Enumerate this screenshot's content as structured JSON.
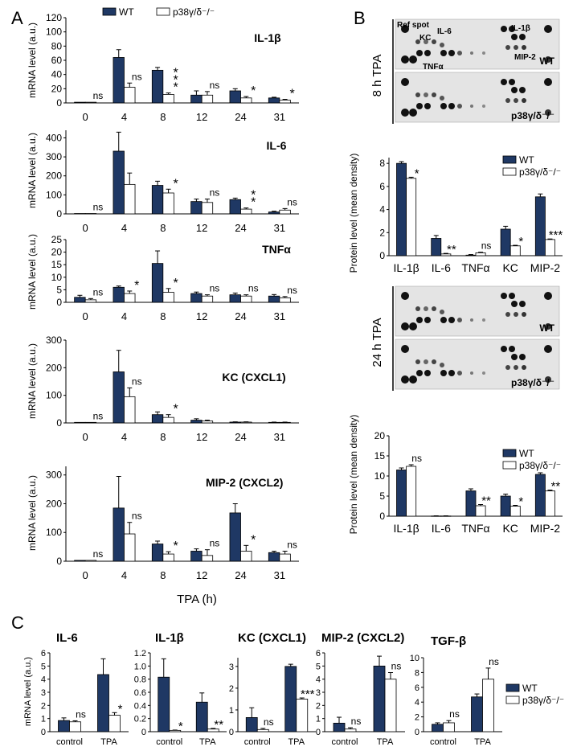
{
  "panels": {
    "A": "A",
    "B": "B",
    "C": "C"
  },
  "legend": {
    "wt": "WT",
    "ko": "p38γ/δ⁻/⁻"
  },
  "ylabel_mrna": "mRNA level (a.u.)",
  "ylabel_protein": "Protein level (mean density)",
  "xlabel_A": "TPA (h)",
  "blots": [
    {
      "time_label": "8 h TPA",
      "wt_label": "WT",
      "ko_label": "p38γ/δ⁻/⁻",
      "ref_spot": "Ref spot",
      "spot_labels": [
        "KC",
        "IL-6",
        "TNFα",
        "IL-1β",
        "MIP-2"
      ]
    },
    {
      "time_label": "24 h TPA",
      "wt_label": "WT",
      "ko_label": "p38γ/δ⁻/⁻"
    }
  ],
  "chart_data": [
    {
      "type": "bar",
      "panel": "A",
      "title": "IL-1β",
      "categories": [
        "0",
        "4",
        "8",
        "12",
        "24",
        "31"
      ],
      "yticks": [
        "0",
        "20",
        "40",
        "60",
        "80",
        "100",
        "120"
      ],
      "ylim": [
        0,
        120
      ],
      "series": [
        {
          "name": "WT",
          "values": [
            1,
            64,
            46,
            11,
            17,
            7
          ],
          "errors": [
            0,
            11,
            4,
            6,
            3,
            1
          ]
        },
        {
          "name": "p38γ/δ-/-",
          "values": [
            1,
            22,
            12,
            11,
            7,
            4
          ],
          "errors": [
            0,
            6,
            2,
            5,
            2,
            1
          ]
        }
      ],
      "annotations": [
        "ns",
        "ns",
        "***",
        "ns",
        "*",
        "*"
      ]
    },
    {
      "type": "bar",
      "panel": "A",
      "title": "IL-6",
      "categories": [
        "0",
        "4",
        "8",
        "12",
        "24",
        "31"
      ],
      "yticks": [
        "0",
        "100",
        "200",
        "300",
        "400"
      ],
      "ylim": [
        0,
        440
      ],
      "series": [
        {
          "name": "WT",
          "values": [
            2,
            330,
            150,
            65,
            75,
            10
          ],
          "errors": [
            0,
            100,
            22,
            13,
            8,
            4
          ]
        },
        {
          "name": "p38γ/δ-/-",
          "values": [
            2,
            155,
            110,
            60,
            25,
            20
          ],
          "errors": [
            0,
            60,
            20,
            18,
            6,
            8
          ]
        }
      ],
      "annotations": [
        "ns",
        "",
        "*",
        "ns",
        "**",
        "ns"
      ]
    },
    {
      "type": "bar",
      "panel": "A",
      "title": "TNFα",
      "categories": [
        "0",
        "4",
        "8",
        "12",
        "24",
        "31"
      ],
      "yticks": [
        "0",
        "5",
        "10",
        "15",
        "20",
        "25"
      ],
      "ylim": [
        0,
        25
      ],
      "series": [
        {
          "name": "WT",
          "values": [
            2,
            6,
            15.5,
            3.5,
            3,
            2.5
          ],
          "errors": [
            0.8,
            0.5,
            5,
            0.6,
            0.7,
            0.6
          ]
        },
        {
          "name": "p38γ/δ-/-",
          "values": [
            1,
            3.5,
            4,
            2.5,
            2.5,
            1.8
          ],
          "errors": [
            0.5,
            1,
            1.5,
            0.5,
            0.5,
            0.5
          ]
        }
      ],
      "annotations": [
        "ns",
        "*",
        "*",
        "ns",
        "ns",
        "ns"
      ]
    },
    {
      "type": "bar",
      "panel": "A",
      "title": "KC (CXCL1)",
      "categories": [
        "0",
        "4",
        "8",
        "12",
        "24",
        "31"
      ],
      "yticks": [
        "0",
        "100",
        "200",
        "300"
      ],
      "ylim": [
        0,
        300
      ],
      "series": [
        {
          "name": "WT",
          "values": [
            2,
            185,
            30,
            10,
            3,
            2
          ],
          "errors": [
            0,
            78,
            10,
            5,
            1,
            1
          ]
        },
        {
          "name": "p38γ/δ-/-",
          "values": [
            2,
            95,
            20,
            7,
            3,
            2
          ],
          "errors": [
            0,
            32,
            10,
            3,
            1,
            1
          ]
        }
      ],
      "annotations": [
        "ns",
        "ns",
        "*",
        "",
        "",
        ""
      ]
    },
    {
      "type": "bar",
      "panel": "A",
      "title": "MIP-2 (CXCL2)",
      "categories": [
        "0",
        "4",
        "8",
        "12",
        "24",
        "31"
      ],
      "yticks": [
        "0",
        "100",
        "200",
        "300"
      ],
      "ylim": [
        0,
        330
      ],
      "series": [
        {
          "name": "WT",
          "values": [
            3,
            185,
            60,
            35,
            168,
            30
          ],
          "errors": [
            0,
            110,
            10,
            8,
            32,
            5
          ]
        },
        {
          "name": "p38γ/δ-/-",
          "values": [
            3,
            95,
            25,
            20,
            35,
            25
          ],
          "errors": [
            0,
            40,
            8,
            20,
            20,
            10
          ]
        }
      ],
      "annotations": [
        "ns",
        "ns",
        "*",
        "ns",
        "*",
        "ns"
      ]
    },
    {
      "type": "bar",
      "panel": "B",
      "title": "8 h TPA protein",
      "categories": [
        "IL-1β",
        "IL-6",
        "TNFα",
        "KC",
        "MIP-2"
      ],
      "yticks": [
        "0",
        "2",
        "4",
        "6",
        "8"
      ],
      "ylim": [
        0,
        8.5
      ],
      "series": [
        {
          "name": "WT",
          "values": [
            8.0,
            1.5,
            0.05,
            2.3,
            5.1
          ],
          "errors": [
            0.15,
            0.25,
            0.05,
            0.25,
            0.25
          ]
        },
        {
          "name": "p38γ/δ-/-",
          "values": [
            6.7,
            0.15,
            0.25,
            0.85,
            1.4
          ],
          "errors": [
            0.1,
            0.05,
            0.05,
            0.05,
            0.05
          ]
        }
      ],
      "annotations": [
        "*",
        "**",
        "ns",
        "*",
        "***"
      ]
    },
    {
      "type": "bar",
      "panel": "B",
      "title": "24 h TPA protein",
      "categories": [
        "IL-1β",
        "IL-6",
        "TNFα",
        "KC",
        "MIP-2"
      ],
      "yticks": [
        "0",
        "5",
        "10",
        "15",
        "20"
      ],
      "ylim": [
        0,
        20
      ],
      "series": [
        {
          "name": "WT",
          "values": [
            11.5,
            0.05,
            6.3,
            5.0,
            10.4
          ],
          "errors": [
            0.5,
            0.05,
            0.5,
            0.5,
            0.4
          ]
        },
        {
          "name": "p38γ/δ-/-",
          "values": [
            12.4,
            0.05,
            2.6,
            2.5,
            6.3
          ],
          "errors": [
            0.4,
            0.05,
            0.3,
            0.2,
            0.2
          ]
        }
      ],
      "annotations": [
        "ns",
        "",
        "**",
        "*",
        "**"
      ]
    },
    {
      "type": "bar",
      "panel": "C",
      "title": "IL-6",
      "categories": [
        "control",
        "TPA"
      ],
      "yticks": [
        "0",
        "1",
        "2",
        "3",
        "4",
        "5",
        "6"
      ],
      "ylim": [
        0,
        6
      ],
      "series": [
        {
          "name": "WT",
          "values": [
            0.85,
            4.35
          ],
          "errors": [
            0.2,
            1.2
          ]
        },
        {
          "name": "p38γ/δ-/-",
          "values": [
            0.75,
            1.25
          ],
          "errors": [
            0.08,
            0.2
          ]
        }
      ],
      "annotations": [
        "ns",
        "*"
      ]
    },
    {
      "type": "bar",
      "panel": "C",
      "title": "IL-1β",
      "categories": [
        "control",
        "TPA"
      ],
      "yticks": [
        "0",
        "0.2",
        "0.4",
        "0.6",
        "0.8",
        "1.0",
        "1.2"
      ],
      "ylim": [
        0,
        1.2
      ],
      "series": [
        {
          "name": "WT",
          "values": [
            0.83,
            0.45
          ],
          "errors": [
            0.28,
            0.14
          ]
        },
        {
          "name": "p38γ/δ-/-",
          "values": [
            0.02,
            0.04
          ],
          "errors": [
            0.005,
            0.01
          ]
        }
      ],
      "annotations": [
        "*",
        "**"
      ]
    },
    {
      "type": "bar",
      "panel": "C",
      "title": "KC (CXCL1)",
      "categories": [
        "control",
        "TPA"
      ],
      "yticks": [
        "0",
        "1",
        "2",
        "3"
      ],
      "ylim": [
        0,
        3.4
      ],
      "series": [
        {
          "name": "WT",
          "values": [
            0.65,
            3.0
          ],
          "errors": [
            0.45,
            0.1
          ]
        },
        {
          "name": "p38γ/δ-/-",
          "values": [
            0.1,
            1.5
          ],
          "errors": [
            0.05,
            0.05
          ]
        }
      ],
      "annotations": [
        "ns",
        "***"
      ]
    },
    {
      "type": "bar",
      "panel": "C",
      "title": "MIP-2 (CXCL2)",
      "categories": [
        "control",
        "TPA"
      ],
      "yticks": [
        "0",
        "1",
        "2",
        "3",
        "4",
        "5",
        "6"
      ],
      "ylim": [
        0,
        6
      ],
      "series": [
        {
          "name": "WT",
          "values": [
            0.65,
            5.0
          ],
          "errors": [
            0.45,
            0.75
          ]
        },
        {
          "name": "p38γ/δ-/-",
          "values": [
            0.2,
            4.0
          ],
          "errors": [
            0.1,
            0.5
          ]
        }
      ],
      "annotations": [
        "ns",
        "ns"
      ]
    },
    {
      "type": "bar",
      "panel": "C",
      "title": "TGF-β",
      "categories": [
        "control",
        "TPA"
      ],
      "yticks": [
        "0",
        "2",
        "4",
        "6",
        "8",
        "10"
      ],
      "ylim": [
        0,
        10
      ],
      "series": [
        {
          "name": "WT",
          "values": [
            1.0,
            4.7
          ],
          "errors": [
            0.2,
            0.4
          ]
        },
        {
          "name": "p38γ/δ-/-",
          "values": [
            1.2,
            7.1
          ],
          "errors": [
            0.3,
            1.5
          ]
        }
      ],
      "annotations": [
        "ns",
        "ns"
      ]
    }
  ]
}
